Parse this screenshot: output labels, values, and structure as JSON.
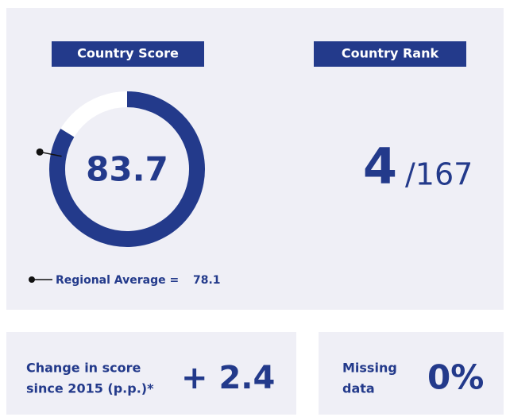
{
  "score_panel": {
    "title": "Country Score",
    "score": 83.7,
    "regional_average_label": "Regional Average =",
    "regional_average": 78.1
  },
  "rank_panel": {
    "title": "Country Rank",
    "rank": 4,
    "total": "/167"
  },
  "change_panel": {
    "label_lines": [
      "Change in score",
      "since 2015 (p.p.)*"
    ],
    "value": "+ 2.4"
  },
  "missing_panel": {
    "label_lines": [
      "Missing",
      "data"
    ],
    "value": "0%"
  }
}
